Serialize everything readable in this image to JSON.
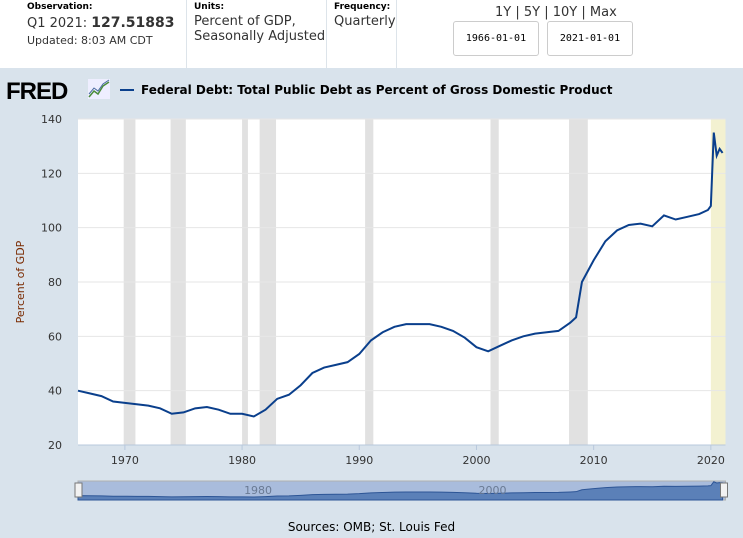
{
  "header": {
    "observation_label": "Observation:",
    "observation_period": "Q1 2021:",
    "observation_value": "127.51883",
    "updated": "Updated: 8:03 AM CDT",
    "units_label": "Units:",
    "units_line1": "Percent of GDP,",
    "units_line2": "Seasonally Adjusted",
    "frequency_label": "Frequency:",
    "frequency": "Quarterly",
    "ranges": [
      "1Y",
      "5Y",
      "10Y",
      "Max"
    ],
    "start_date": "1966-01-01",
    "end_date": "2021-01-01"
  },
  "logo": "FRED",
  "sources": "Sources: OMB; St. Louis Fed",
  "colors": {
    "line": "#0a3f8c",
    "recession": "#e1e1e1",
    "highlight": "#f3f1d1",
    "panel": "#d9e3ec"
  },
  "chart_data": {
    "type": "line",
    "title": "Federal Debt: Total Public Debt as Percent of Gross Domestic Product",
    "ylabel": "Percent of GDP",
    "xlabel": "",
    "xlim": [
      1966,
      2021.25
    ],
    "ylim": [
      20,
      140
    ],
    "yticks": [
      20,
      40,
      60,
      80,
      100,
      120,
      140
    ],
    "xticks": [
      1970,
      1980,
      1990,
      2000,
      2010,
      2020
    ],
    "grid": "horizontal",
    "recessions": [
      [
        1969.9,
        1970.9
      ],
      [
        1973.9,
        1975.2
      ],
      [
        1980.0,
        1980.5
      ],
      [
        1981.5,
        1982.9
      ],
      [
        1990.5,
        1991.2
      ],
      [
        2001.2,
        2001.9
      ],
      [
        2007.9,
        2009.5
      ]
    ],
    "highlight": [
      2020.0,
      2021.25
    ],
    "navigator_labels": [
      "1980",
      "2000"
    ],
    "series": [
      {
        "x": [
          1966,
          1967,
          1968,
          1969,
          1970,
          1971,
          1972,
          1973,
          1974,
          1975,
          1976,
          1977,
          1978,
          1979,
          1980,
          1981,
          1982,
          1983,
          1984,
          1985,
          1986,
          1987,
          1988,
          1989,
          1990,
          1991,
          1992,
          1993,
          1994,
          1995,
          1996,
          1997,
          1998,
          1999,
          2000,
          2001,
          2002,
          2003,
          2004,
          2005,
          2006,
          2007,
          2008,
          2008.5,
          2009,
          2010,
          2011,
          2012,
          2013,
          2014,
          2015,
          2016,
          2017,
          2018,
          2019,
          2019.75,
          2020,
          2020.25,
          2020.5,
          2020.75,
          2021
        ],
        "y": [
          40,
          39,
          38,
          36,
          35.5,
          35,
          34.5,
          33.5,
          31.5,
          32,
          33.5,
          34,
          33,
          31.5,
          31.5,
          30.5,
          33,
          37,
          38.5,
          42,
          46.5,
          48.5,
          49.5,
          50.5,
          53.5,
          58.5,
          61.5,
          63.5,
          64.5,
          64.5,
          64.5,
          63.5,
          62,
          59.5,
          56,
          54.5,
          56.5,
          58.5,
          60,
          61,
          61.5,
          62,
          65,
          67,
          80,
          88,
          95,
          99,
          101,
          101.5,
          100.5,
          104.5,
          103,
          104,
          105,
          106.5,
          108,
          135,
          126.5,
          129,
          127.5
        ]
      }
    ]
  }
}
